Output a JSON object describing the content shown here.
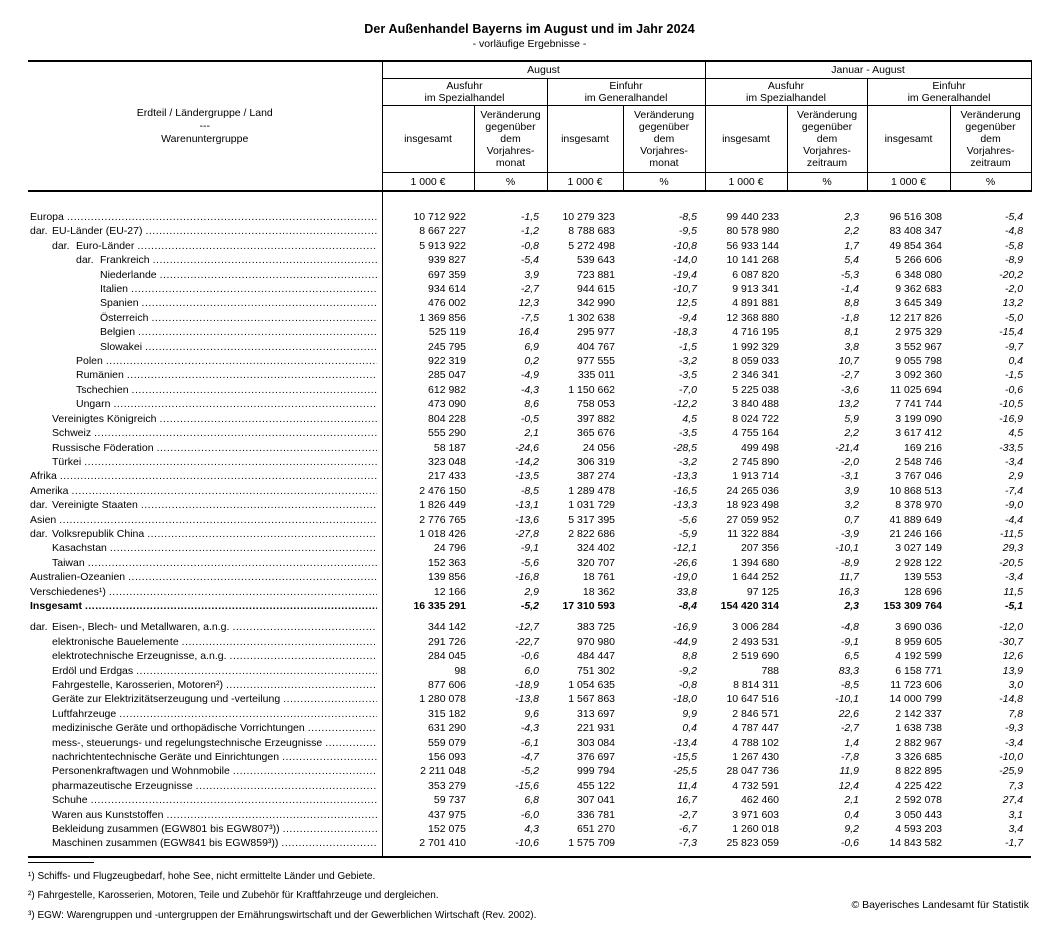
{
  "title": "Der Außenhandel Bayerns im August und im Jahr 2024",
  "subtitle": "- vorläufige Ergebnisse -",
  "table": {
    "row_header": "Erdteil / Ländergruppe / Land\n---\nWarenuntergruppe",
    "header": {
      "groups": [
        {
          "period": "August",
          "flows": [
            "Ausfuhr\nim Spezialhandel",
            "Einfuhr\nim Generalhandel"
          ],
          "change": "Veränderung\ngegenüber\ndem\nVorjahres-\nmonat"
        },
        {
          "period": "Januar - August",
          "flows": [
            "Ausfuhr\nim Spezialhandel",
            "Einfuhr\nim Generalhandel"
          ],
          "change": "Veränderung\ngegenüber\ndem\nVorjahres-\nzeitraum"
        }
      ],
      "total": "insgesamt",
      "unit_value": "1 000 €",
      "unit_pct": "%"
    },
    "sections": {
      "countries": [
        {
          "label": "Europa",
          "indent": 0,
          "values": [
            "10 712 922",
            "-1,5",
            "10 279 323",
            "-8,5",
            "99 440 233",
            "2,3",
            "96 516 308",
            "-5,4"
          ]
        },
        {
          "label": "EU-Länder (EU-27)",
          "prefix": "dar.",
          "indent": 1,
          "values": [
            "8 667 227",
            "-1,2",
            "8 788 683",
            "-9,5",
            "80 578 980",
            "2,2",
            "83 408 347",
            "-4,8"
          ]
        },
        {
          "label": "Euro-Länder",
          "prefix": "dar.",
          "indent": 2,
          "values": [
            "5 913 922",
            "-0,8",
            "5 272 498",
            "-10,8",
            "56 933 144",
            "1,7",
            "49 854 364",
            "-5,8"
          ]
        },
        {
          "label": "Frankreich",
          "prefix": "dar.",
          "indent": 3,
          "values": [
            "939 827",
            "-5,4",
            "539 643",
            "-14,0",
            "10 141 268",
            "5,4",
            "5 266 606",
            "-8,9"
          ]
        },
        {
          "label": "Niederlande",
          "indent": 3,
          "values": [
            "697 359",
            "3,9",
            "723 881",
            "-19,4",
            "6 087 820",
            "-5,3",
            "6 348 080",
            "-20,2"
          ]
        },
        {
          "label": "Italien",
          "indent": 3,
          "values": [
            "934 614",
            "-2,7",
            "944 615",
            "-10,7",
            "9 913 341",
            "-1,4",
            "9 362 683",
            "-2,0"
          ]
        },
        {
          "label": "Spanien",
          "indent": 3,
          "values": [
            "476 002",
            "12,3",
            "342 990",
            "12,5",
            "4 891 881",
            "8,8",
            "3 645 349",
            "13,2"
          ]
        },
        {
          "label": "Österreich",
          "indent": 3,
          "values": [
            "1 369 856",
            "-7,5",
            "1 302 638",
            "-9,4",
            "12 368 880",
            "-1,8",
            "12 217 826",
            "-5,0"
          ]
        },
        {
          "label": "Belgien",
          "indent": 3,
          "values": [
            "525 119",
            "16,4",
            "295 977",
            "-18,3",
            "4 716 195",
            "8,1",
            "2 975 329",
            "-15,4"
          ]
        },
        {
          "label": "Slowakei",
          "indent": 3,
          "values": [
            "245 795",
            "6,9",
            "404 767",
            "-1,5",
            "1 992 329",
            "3,8",
            "3 552 967",
            "-9,7"
          ]
        },
        {
          "label": "Polen",
          "indent": 2,
          "values": [
            "922 319",
            "0,2",
            "977 555",
            "-3,2",
            "8 059 033",
            "10,7",
            "9 055 798",
            "0,4"
          ]
        },
        {
          "label": "Rumänien",
          "indent": 2,
          "values": [
            "285 047",
            "-4,9",
            "335 011",
            "-3,5",
            "2 346 341",
            "-2,7",
            "3 092 360",
            "-1,5"
          ]
        },
        {
          "label": "Tschechien",
          "indent": 2,
          "values": [
            "612 982",
            "-4,3",
            "1 150 662",
            "-7,0",
            "5 225 038",
            "-3,6",
            "11 025 694",
            "-0,6"
          ]
        },
        {
          "label": "Ungarn",
          "indent": 2,
          "values": [
            "473 090",
            "8,6",
            "758 053",
            "-12,2",
            "3 840 488",
            "13,2",
            "7 741 744",
            "-10,5"
          ]
        },
        {
          "label": "Vereinigtes Königreich",
          "indent": 1,
          "values": [
            "804 228",
            "-0,5",
            "397 882",
            "4,5",
            "8 024 722",
            "5,9",
            "3 199 090",
            "-16,9"
          ]
        },
        {
          "label": "Schweiz",
          "indent": 1,
          "values": [
            "555 290",
            "2,1",
            "365 676",
            "-3,5",
            "4 755 164",
            "2,2",
            "3 617 412",
            "4,5"
          ]
        },
        {
          "label": "Russische Föderation",
          "indent": 1,
          "values": [
            "58 187",
            "-24,6",
            "24 056",
            "-28,5",
            "499 498",
            "-21,4",
            "169 216",
            "-33,5"
          ]
        },
        {
          "label": "Türkei",
          "indent": 1,
          "values": [
            "323 048",
            "-14,2",
            "306 319",
            "-3,2",
            "2 745 890",
            "-2,0",
            "2 548 746",
            "-3,4"
          ]
        },
        {
          "label": "Afrika",
          "indent": 0,
          "values": [
            "217 433",
            "-13,5",
            "387 274",
            "-13,3",
            "1 913 714",
            "-3,1",
            "3 767 046",
            "2,9"
          ]
        },
        {
          "label": "Amerika",
          "indent": 0,
          "values": [
            "2 476 150",
            "-8,5",
            "1 289 478",
            "-16,5",
            "24 265 036",
            "3,9",
            "10 868 513",
            "-7,4"
          ]
        },
        {
          "label": "Vereinigte Staaten",
          "prefix": "dar.",
          "indent": 1,
          "values": [
            "1 826 449",
            "-13,1",
            "1 031 729",
            "-13,3",
            "18 923 498",
            "3,2",
            "8 378 970",
            "-9,0"
          ]
        },
        {
          "label": "Asien",
          "indent": 0,
          "values": [
            "2 776 765",
            "-13,6",
            "5 317 395",
            "-5,6",
            "27 059 952",
            "0,7",
            "41 889 649",
            "-4,4"
          ]
        },
        {
          "label": "Volksrepublik China",
          "prefix": "dar.",
          "indent": 1,
          "values": [
            "1 018 426",
            "-27,8",
            "2 822 686",
            "-5,9",
            "11 322 884",
            "-3,9",
            "21 246 166",
            "-11,5"
          ]
        },
        {
          "label": "Kasachstan",
          "indent": 1,
          "values": [
            "24 796",
            "-9,1",
            "324 402",
            "-12,1",
            "207 356",
            "-10,1",
            "3 027 149",
            "29,3"
          ]
        },
        {
          "label": "Taiwan",
          "indent": 1,
          "values": [
            "152 363",
            "-5,6",
            "320 707",
            "-26,6",
            "1 394 680",
            "-8,9",
            "2 928 122",
            "-20,5"
          ]
        },
        {
          "label": "Australien-Ozeanien",
          "indent": 0,
          "values": [
            "139 856",
            "-16,8",
            "18 761",
            "-19,0",
            "1 644 252",
            "11,7",
            "139 553",
            "-3,4"
          ]
        },
        {
          "label": "Verschiedenes¹)",
          "indent": 0,
          "values": [
            "12 166",
            "2,9",
            "18 362",
            "33,8",
            "97 125",
            "16,3",
            "128 696",
            "11,5"
          ]
        },
        {
          "label": "Insgesamt",
          "indent": 0,
          "bold": true,
          "values": [
            "16 335 291",
            "-5,2",
            "17 310 593",
            "-8,4",
            "154 420 314",
            "2,3",
            "153 309 764",
            "-5,1"
          ]
        }
      ],
      "goods": [
        {
          "label": "Eisen-, Blech- und Metallwaren, a.n.g.",
          "prefix": "dar.",
          "indent": 1,
          "values": [
            "344 142",
            "-12,7",
            "383 725",
            "-16,9",
            "3 006 284",
            "-4,8",
            "3 690 036",
            "-12,0"
          ]
        },
        {
          "label": "elektronische Bauelemente",
          "indent": 1,
          "values": [
            "291 726",
            "-22,7",
            "970 980",
            "-44,9",
            "2 493 531",
            "-9,1",
            "8 959 605",
            "-30,7"
          ]
        },
        {
          "label": "elektrotechnische Erzeugnisse, a.n.g.",
          "indent": 1,
          "values": [
            "284 045",
            "-0,6",
            "484 447",
            "8,8",
            "2 519 690",
            "6,5",
            "4 192 599",
            "12,6"
          ]
        },
        {
          "label": "Erdöl und Erdgas",
          "indent": 1,
          "values": [
            "98",
            "6,0",
            "751 302",
            "-9,2",
            "788",
            "83,3",
            "6 158 771",
            "13,9"
          ]
        },
        {
          "label": "Fahrgestelle, Karosserien, Motoren²)",
          "indent": 1,
          "values": [
            "877 606",
            "-18,9",
            "1 054 635",
            "-0,8",
            "8 814 311",
            "-8,5",
            "11 723 606",
            "3,0"
          ]
        },
        {
          "label": "Geräte zur Elektrizitätserzeugung und -verteilung",
          "indent": 1,
          "values": [
            "1 280 078",
            "-13,8",
            "1 567 863",
            "-18,0",
            "10 647 516",
            "-10,1",
            "14 000 799",
            "-14,8"
          ]
        },
        {
          "label": "Luftfahrzeuge",
          "indent": 1,
          "values": [
            "315 182",
            "9,6",
            "313 697",
            "9,9",
            "2 846 571",
            "22,6",
            "2 142 337",
            "7,8"
          ]
        },
        {
          "label": "medizinische Geräte und orthopädische Vorrichtungen",
          "indent": 1,
          "values": [
            "631 290",
            "-4,3",
            "221 931",
            "0,4",
            "4 787 447",
            "-2,7",
            "1 638 738",
            "-9,3"
          ]
        },
        {
          "label": "mess-, steuerungs- und regelungstechnische Erzeugnisse",
          "indent": 1,
          "values": [
            "559 079",
            "-6,1",
            "303 084",
            "-13,4",
            "4 788 102",
            "1,4",
            "2 882 967",
            "-3,4"
          ]
        },
        {
          "label": "nachrichtentechnische Geräte und Einrichtungen",
          "indent": 1,
          "values": [
            "156 093",
            "-4,7",
            "376 697",
            "-15,5",
            "1 267 430",
            "-7,8",
            "3 326 685",
            "-10,0"
          ]
        },
        {
          "label": "Personenkraftwagen und Wohnmobile",
          "indent": 1,
          "values": [
            "2 211 048",
            "-5,2",
            "999 794",
            "-25,5",
            "28 047 736",
            "11,9",
            "8 822 895",
            "-25,9"
          ]
        },
        {
          "label": "pharmazeutische Erzeugnisse",
          "indent": 1,
          "values": [
            "353 279",
            "-15,6",
            "455 122",
            "11,4",
            "4 732 591",
            "12,4",
            "4 225 422",
            "7,3"
          ]
        },
        {
          "label": "Schuhe",
          "indent": 1,
          "values": [
            "59 737",
            "6,8",
            "307 041",
            "16,7",
            "462 460",
            "2,1",
            "2 592 078",
            "27,4"
          ]
        },
        {
          "label": "Waren aus Kunststoffen",
          "indent": 1,
          "values": [
            "437 975",
            "-6,0",
            "336 781",
            "-2,7",
            "3 971 603",
            "0,4",
            "3 050 443",
            "3,1"
          ]
        },
        {
          "label": "Bekleidung zusammen (EGW801 bis EGW807³))",
          "indent": 1,
          "values": [
            "152 075",
            "4,3",
            "651 270",
            "-6,7",
            "1 260 018",
            "9,2",
            "4 593 203",
            "3,4"
          ]
        },
        {
          "label": "Maschinen zusammen (EGW841 bis EGW859³))",
          "indent": 1,
          "values": [
            "2 701 410",
            "-10,6",
            "1 575 709",
            "-7,3",
            "25 823 059",
            "-0,6",
            "14 843 582",
            "-1,7"
          ]
        }
      ]
    }
  },
  "footnotes": [
    "¹) Schiffs- und Flugzeugbedarf, hohe See, nicht ermittelte Länder und Gebiete.",
    "²) Fahrgestelle, Karosserien, Motoren, Teile und Zubehör für Kraftfahrzeuge und dergleichen.",
    "³) EGW: Warengruppen und -untergruppen der Ernährungswirtschaft und der Gewerblichen Wirtschaft (Rev. 2002)."
  ],
  "copyright": "© Bayerisches Landesamt für Statistik"
}
